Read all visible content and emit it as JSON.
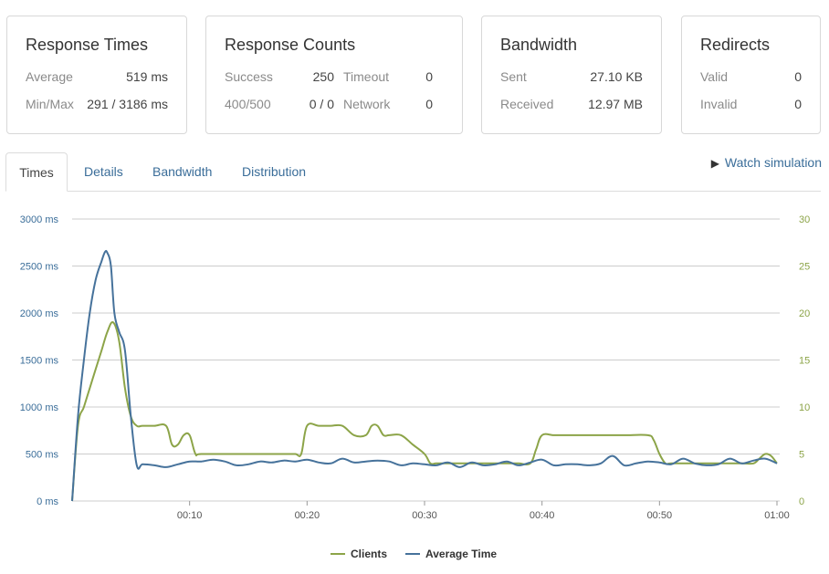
{
  "cards": {
    "response_times": {
      "title": "Response Times",
      "average_label": "Average",
      "average_value": "519 ms",
      "minmax_label": "Min/Max",
      "minmax_value": "291 / 3186 ms"
    },
    "response_counts": {
      "title": "Response Counts",
      "success_label": "Success",
      "success_value": "250",
      "timeout_label": "Timeout",
      "timeout_value": "0",
      "errors_label": "400/500",
      "errors_value": "0 / 0",
      "network_label": "Network",
      "network_value": "0"
    },
    "bandwidth": {
      "title": "Bandwidth",
      "sent_label": "Sent",
      "sent_value": "27.10 KB",
      "received_label": "Received",
      "received_value": "12.97 MB"
    },
    "redirects": {
      "title": "Redirects",
      "valid_label": "Valid",
      "valid_value": "0",
      "invalid_label": "Invalid",
      "invalid_value": "0"
    }
  },
  "tabs": [
    "Times",
    "Details",
    "Bandwidth",
    "Distribution"
  ],
  "active_tab": "Times",
  "watch_simulation": {
    "icon": "play-icon",
    "label": "Watch simulation"
  },
  "colors": {
    "clients": "#8ca448",
    "average_time": "#46729b",
    "grid": "#cccccc",
    "link": "#3a6d99"
  },
  "chart_data": {
    "type": "line",
    "x_tick_labels": [
      "00:10",
      "00:20",
      "00:30",
      "00:40",
      "00:50",
      "01:00"
    ],
    "x_tick_seconds": [
      10,
      20,
      30,
      40,
      50,
      60
    ],
    "xlim": [
      0,
      60
    ],
    "y_left_ticks": [
      "0 ms",
      "500 ms",
      "1000 ms",
      "1500 ms",
      "2000 ms",
      "2500 ms",
      "3000 ms"
    ],
    "y_left_lim": [
      0,
      3000
    ],
    "y_right_ticks": [
      "0",
      "5",
      "10",
      "15",
      "20",
      "25",
      "30"
    ],
    "y_right_lim": [
      0,
      30
    ],
    "grid": true,
    "legend_position": "bottom-center",
    "series": [
      {
        "name": "Clients",
        "axis": "right",
        "color": "#8ca448",
        "x": [
          0,
          0.5,
          1,
          1.5,
          2,
          2.5,
          3,
          3.5,
          4,
          4.5,
          5,
          5.5,
          6,
          7,
          8,
          8.5,
          9,
          9.5,
          10,
          10.5,
          11,
          14,
          16,
          18,
          19,
          19.5,
          20,
          21,
          22,
          23,
          24,
          25,
          25.5,
          26,
          26.5,
          27,
          28,
          29,
          30,
          30.5,
          31,
          32,
          33,
          34,
          35,
          36,
          37,
          38,
          39,
          39.5,
          40,
          41,
          42,
          43,
          45,
          47,
          49,
          49.5,
          50,
          50.5,
          51,
          53,
          55,
          57,
          58,
          58.5,
          59,
          59.5,
          60
        ],
        "values": [
          0,
          8,
          10,
          12,
          14,
          16,
          18,
          19,
          17,
          12,
          9,
          8,
          8,
          8,
          8,
          6,
          6,
          7,
          7,
          5,
          5,
          5,
          5,
          5,
          5,
          5,
          8,
          8,
          8,
          8,
          7,
          7,
          8,
          8,
          7,
          7,
          7,
          6,
          5,
          4,
          4,
          4,
          4,
          4,
          4,
          4,
          4,
          4,
          4,
          5.5,
          7,
          7,
          7,
          7,
          7,
          7,
          7,
          6.5,
          5,
          4,
          4,
          4,
          4,
          4,
          4,
          4.5,
          5,
          4.8,
          4
        ]
      },
      {
        "name": "Average Time",
        "axis": "left",
        "color": "#46729b",
        "x": [
          0,
          0.5,
          1,
          1.5,
          2,
          2.5,
          2.8,
          3.0,
          3.3,
          3.6,
          4,
          4.5,
          5,
          5.5,
          6,
          7,
          8,
          9,
          10,
          11,
          12,
          13,
          14,
          15,
          16,
          17,
          18,
          19,
          20,
          21,
          22,
          23,
          24,
          25,
          26,
          27,
          28,
          29,
          30,
          31,
          32,
          33,
          34,
          35,
          36,
          37,
          38,
          39,
          40,
          41,
          42,
          43,
          44,
          45,
          46,
          47,
          48,
          49,
          50,
          51,
          52,
          53,
          54,
          55,
          56,
          57,
          58,
          59,
          60
        ],
        "values": [
          0,
          900,
          1500,
          2000,
          2350,
          2550,
          2650,
          2640,
          2500,
          2000,
          1800,
          1600,
          900,
          380,
          390,
          380,
          360,
          390,
          420,
          420,
          440,
          420,
          380,
          390,
          420,
          410,
          430,
          420,
          440,
          410,
          400,
          450,
          410,
          420,
          430,
          420,
          380,
          400,
          390,
          380,
          410,
          360,
          410,
          380,
          390,
          420,
          380,
          410,
          440,
          380,
          390,
          390,
          380,
          400,
          480,
          380,
          400,
          420,
          410,
          390,
          450,
          400,
          380,
          390,
          450,
          400,
          430,
          450,
          400
        ]
      }
    ]
  }
}
